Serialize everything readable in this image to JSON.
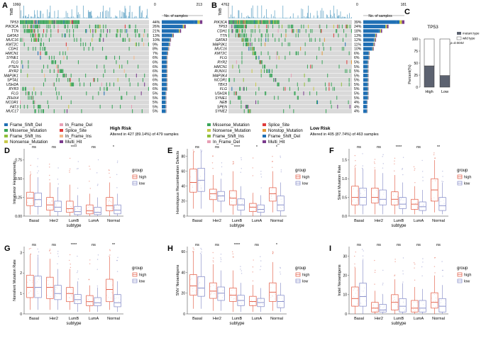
{
  "colors": {
    "frame_shift_del": "#1f6fb4",
    "missense": "#3aa55a",
    "frame_shift_ins": "#8fbf3a",
    "nonsense": "#c9c94a",
    "in_frame_del": "#e8a0b5",
    "splice_site": "#e03a3a",
    "in_frame_ins": "#f5b98a",
    "multi_hit": "#7a3a8c",
    "nonstop": "#e39a3a",
    "bg_cell": "#d9d9d9",
    "tmb_bar": "#6aa9c9",
    "high_box": "#e2553e",
    "low_box": "#7f86c6",
    "mutant_bar": "#5c6270",
    "wild_bar": "#ffffff"
  },
  "panel_a": {
    "letter": "A",
    "tmb_label": "TMB",
    "tmb_max": "1060",
    "right_max": "213",
    "right_zero": "0",
    "right_axis_label": "No. of samples",
    "genes": [
      "TP53",
      "PIK3CA",
      "TTN",
      "GATA3",
      "MUC16",
      "KMT2C",
      "CDH1",
      "HMCN1",
      "SYNE1",
      "FLG",
      "PTEN",
      "RYR2",
      "MAP3K1",
      "SPTA1",
      "USH2A",
      "RYR3",
      "FLG",
      "ZFHX4",
      "NCOR1",
      "FAT3",
      "MUC17"
    ],
    "pcts": [
      "44%",
      "26%",
      "21%",
      "13%",
      "10%",
      "9%",
      "8%",
      "7%",
      "6%",
      "6%",
      "6%",
      "6%",
      "6%",
      "6%",
      "6%",
      "6%",
      "5%",
      "5%",
      "5%",
      "5%",
      "5%"
    ],
    "counts": [
      210,
      124,
      100,
      62,
      48,
      43,
      38,
      33,
      29,
      29,
      29,
      29,
      29,
      29,
      29,
      29,
      24,
      24,
      24,
      24,
      24
    ],
    "legend": [
      "Frame_Shift_Del",
      "Missense_Mutation",
      "Frame_Shift_Ins",
      "Nonsense_Mutation",
      "In_Frame_Del",
      "Splice_Site",
      "In_Frame_Ins",
      "Multi_Hit"
    ],
    "group_title": "High Risk",
    "group_sub": "Altered in 427 (89.14%) of 479 samples"
  },
  "panel_b": {
    "letter": "B",
    "tmb_label": "TMB",
    "tmb_max": "4762",
    "right_max": "181",
    "right_zero": "0",
    "right_axis_label": "No. of samples",
    "genes": [
      "PIK3CA",
      "TP53",
      "CDH1",
      "TTN",
      "GATA3",
      "MAP3K1",
      "MUC16",
      "KMT2C",
      "FLG",
      "RYR2",
      "HMCN1",
      "RUNX1",
      "MAP3K4",
      "NCOR1",
      "TBX3",
      "FLG",
      "USH2A",
      "SYNE1",
      "NEB",
      "SPEN",
      "SYNE2"
    ],
    "pcts": [
      "39%",
      "24%",
      "18%",
      "13%",
      "12%",
      "11%",
      "10%",
      "6%",
      "6%",
      "5%",
      "5%",
      "5%",
      "5%",
      "5%",
      "5%",
      "5%",
      "5%",
      "5%",
      "4%",
      "4%",
      "4%"
    ],
    "counts": [
      181,
      111,
      83,
      60,
      56,
      51,
      46,
      28,
      28,
      23,
      23,
      23,
      23,
      23,
      23,
      23,
      23,
      23,
      19,
      19,
      19
    ],
    "legend": [
      "Missense_Mutation",
      "Nonsense_Mutation",
      "Frame_Shift_Ins",
      "In_Frame_Del",
      "Splice_Site",
      "Nonstop_Mutation",
      "Frame_Shift_Del",
      "Multi_Hit"
    ],
    "group_title": "Low Risk",
    "group_sub": "Altered in 405 (87.74%) of 463 samples"
  },
  "panel_c": {
    "letter": "C",
    "title": "TP53",
    "ylabel": "Percent(%)",
    "yticks": [
      "0",
      "25",
      "50",
      "75",
      "100"
    ],
    "categories": [
      "High",
      "Low"
    ],
    "mutant": [
      44,
      24
    ],
    "legend": [
      "mutant type",
      "wild type"
    ],
    "annotation": "Fisher, p=0.0044"
  },
  "box_common": {
    "subtypes": [
      "Basal",
      "Her2",
      "LumB",
      "LumA",
      "Normal"
    ],
    "xlabel": "subtype",
    "legend_title": "group",
    "legend_items": [
      "high",
      "low"
    ]
  },
  "chart_data": [
    {
      "type": "box",
      "panel": "D",
      "ylabel": "Intratumor Heterogeneity",
      "yticks": [
        "0.00",
        "0.25",
        "0.50",
        "0.75"
      ],
      "ylim": [
        0,
        0.9
      ],
      "sig": [
        "ns",
        "ns",
        "****",
        "ns",
        "*"
      ],
      "high": [
        [
          0.02,
          0.14,
          0.24,
          0.32,
          0.55
        ],
        [
          0.0,
          0.08,
          0.15,
          0.25,
          0.45
        ],
        [
          0.0,
          0.05,
          0.1,
          0.2,
          0.42
        ],
        [
          0.0,
          0.03,
          0.07,
          0.15,
          0.3
        ],
        [
          0.0,
          0.07,
          0.14,
          0.25,
          0.45
        ]
      ],
      "low": [
        [
          0.02,
          0.13,
          0.22,
          0.31,
          0.52
        ],
        [
          0.0,
          0.06,
          0.12,
          0.2,
          0.38
        ],
        [
          0.0,
          0.02,
          0.06,
          0.13,
          0.28
        ],
        [
          0.0,
          0.02,
          0.05,
          0.12,
          0.25
        ],
        [
          0.0,
          0.03,
          0.08,
          0.15,
          0.3
        ]
      ]
    },
    {
      "type": "box",
      "panel": "E",
      "ylabel": "Homologous Recombination Defects",
      "yticks": [
        "0",
        "20",
        "40",
        "60",
        "80"
      ],
      "ylim": [
        0,
        90
      ],
      "sig": [
        "ns",
        "ns",
        "****",
        "*",
        "*"
      ],
      "high": [
        [
          10,
          32,
          45,
          63,
          85
        ],
        [
          5,
          22,
          30,
          36,
          55
        ],
        [
          2,
          15,
          24,
          34,
          60
        ],
        [
          0,
          6,
          12,
          17,
          30
        ],
        [
          5,
          20,
          30,
          38,
          60
        ]
      ],
      "low": [
        [
          10,
          33,
          48,
          64,
          86
        ],
        [
          5,
          20,
          27,
          33,
          50
        ],
        [
          1,
          8,
          15,
          23,
          40
        ],
        [
          0,
          5,
          9,
          15,
          28
        ],
        [
          0,
          7,
          15,
          27,
          45
        ]
      ]
    },
    {
      "type": "box",
      "panel": "F",
      "ylabel": "Silent Mutation Rate",
      "yticks": [
        "0.0",
        "0.5",
        "1.0",
        "1.5"
      ],
      "ylim": [
        0,
        1.8
      ],
      "sig": [
        "ns",
        "ns",
        "****",
        "ns",
        "**"
      ],
      "high": [
        [
          0.05,
          0.3,
          0.5,
          0.8,
          1.3
        ],
        [
          0.05,
          0.35,
          0.5,
          0.75,
          1.25
        ],
        [
          0.05,
          0.3,
          0.45,
          0.65,
          1.1
        ],
        [
          0.05,
          0.18,
          0.32,
          0.45,
          0.8
        ],
        [
          0.1,
          0.4,
          0.7,
          1.0,
          1.5
        ]
      ],
      "low": [
        [
          0.05,
          0.3,
          0.5,
          0.75,
          1.25
        ],
        [
          0.05,
          0.3,
          0.45,
          0.7,
          1.15
        ],
        [
          0.05,
          0.2,
          0.32,
          0.5,
          0.9
        ],
        [
          0.05,
          0.15,
          0.25,
          0.38,
          0.7
        ],
        [
          0.05,
          0.15,
          0.28,
          0.5,
          0.9
        ]
      ]
    },
    {
      "type": "box",
      "panel": "G",
      "ylabel": "Nonsilent Mutation Rate",
      "yticks": [
        "0",
        "1",
        "2",
        "3"
      ],
      "ylim": [
        0,
        3.3
      ],
      "sig": [
        "ns",
        "ns",
        "****",
        "ns",
        "**"
      ],
      "high": [
        [
          0.2,
          0.8,
          1.3,
          1.9,
          2.9
        ],
        [
          0.2,
          0.75,
          1.3,
          1.8,
          2.7
        ],
        [
          0.2,
          0.6,
          1.0,
          1.3,
          2.2
        ],
        [
          0.1,
          0.4,
          0.6,
          0.9,
          1.4
        ],
        [
          0.2,
          0.6,
          1.2,
          1.7,
          2.8
        ]
      ],
      "low": [
        [
          0.2,
          0.8,
          1.3,
          1.85,
          2.8
        ],
        [
          0.2,
          0.7,
          1.0,
          1.4,
          2.2
        ],
        [
          0.1,
          0.5,
          0.7,
          0.95,
          1.6
        ],
        [
          0.1,
          0.4,
          0.55,
          0.8,
          1.3
        ],
        [
          0.1,
          0.35,
          0.55,
          0.95,
          1.6
        ]
      ]
    },
    {
      "type": "box",
      "panel": "H",
      "ylabel": "SNV Neoantigens",
      "yticks": [
        "0",
        "20",
        "40",
        "60"
      ],
      "ylim": [
        0,
        65
      ],
      "sig": [
        "ns",
        "ns",
        "****",
        "ns",
        "*"
      ],
      "high": [
        [
          5,
          18,
          27,
          38,
          60
        ],
        [
          3,
          15,
          22,
          30,
          48
        ],
        [
          2,
          12,
          18,
          25,
          42
        ],
        [
          2,
          8,
          12,
          17,
          28
        ],
        [
          3,
          12,
          21,
          30,
          50
        ]
      ],
      "low": [
        [
          5,
          17,
          25,
          36,
          58
        ],
        [
          3,
          13,
          20,
          26,
          42
        ],
        [
          2,
          8,
          13,
          18,
          30
        ],
        [
          2,
          7,
          11,
          15,
          25
        ],
        [
          2,
          6,
          12,
          18,
          30
        ]
      ]
    },
    {
      "type": "box",
      "panel": "I",
      "ylabel": "Indel Neoantigens",
      "yticks": [
        "0",
        "10",
        "20",
        "30"
      ],
      "ylim": [
        0,
        35
      ],
      "sig": [
        "ns",
        "ns",
        "ns",
        "ns",
        "ns"
      ],
      "high": [
        [
          0,
          4,
          8,
          14,
          24
        ],
        [
          0,
          1,
          3,
          6,
          12
        ],
        [
          0,
          2,
          6,
          10,
          18
        ],
        [
          0,
          1,
          3,
          7,
          14
        ],
        [
          0,
          3,
          6,
          11,
          20
        ]
      ],
      "low": [
        [
          0,
          4,
          9,
          16,
          28
        ],
        [
          0,
          1,
          2,
          5,
          10
        ],
        [
          0,
          1,
          4,
          8,
          16
        ],
        [
          0,
          1,
          3,
          7,
          13
        ],
        [
          0,
          1,
          4,
          8,
          15
        ]
      ]
    }
  ]
}
